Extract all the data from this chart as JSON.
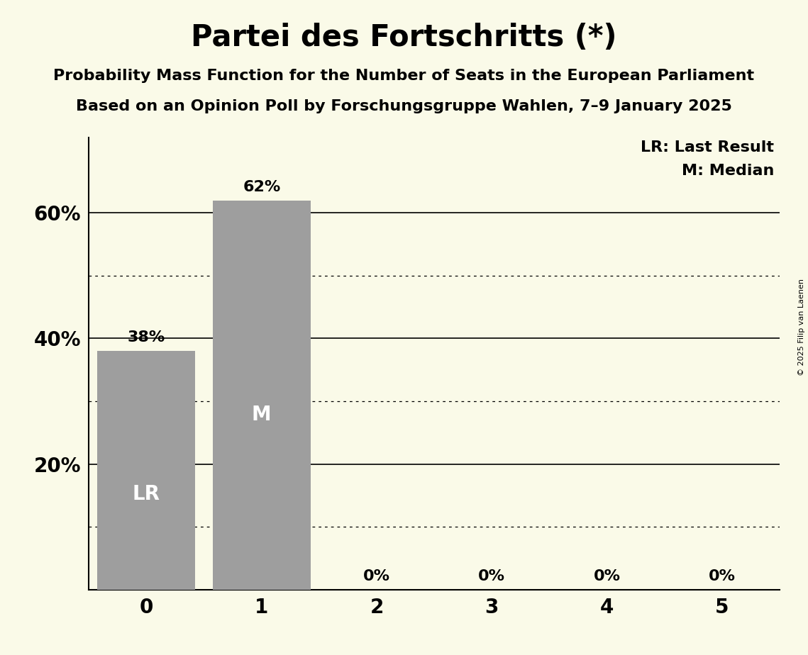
{
  "title": "Partei des Fortschritts (*)",
  "subtitle1": "Probability Mass Function for the Number of Seats in the European Parliament",
  "subtitle2": "Based on an Opinion Poll by Forschungsgruppe Wahlen, 7–9 January 2025",
  "copyright": "© 2025 Filip van Laenen",
  "categories": [
    0,
    1,
    2,
    3,
    4,
    5
  ],
  "values": [
    0.38,
    0.62,
    0.0,
    0.0,
    0.0,
    0.0
  ],
  "bar_color": "#9E9E9E",
  "background_color": "#FAFAE8",
  "bar_labels": [
    "38%",
    "62%",
    "0%",
    "0%",
    "0%",
    "0%"
  ],
  "last_result_seat": 0,
  "median_seat": 1,
  "legend_lr": "LR: Last Result",
  "legend_m": "M: Median",
  "label_lr_color": "#FFFFFF",
  "label_m_color": "#FFFFFF",
  "yticks": [
    0.0,
    0.2,
    0.4,
    0.6
  ],
  "ytick_labels": [
    "",
    "20%",
    "40%",
    "60%"
  ],
  "ylim": [
    0,
    0.72
  ],
  "xlim": [
    -0.5,
    5.5
  ],
  "dotted_gridlines": [
    0.1,
    0.3,
    0.5
  ],
  "solid_gridlines": [
    0.2,
    0.4,
    0.6
  ],
  "bar_width": 0.85,
  "title_fontsize": 30,
  "subtitle_fontsize": 16,
  "tick_fontsize": 20,
  "label_fontsize": 16,
  "legend_fontsize": 16,
  "inner_label_fontsize": 20
}
